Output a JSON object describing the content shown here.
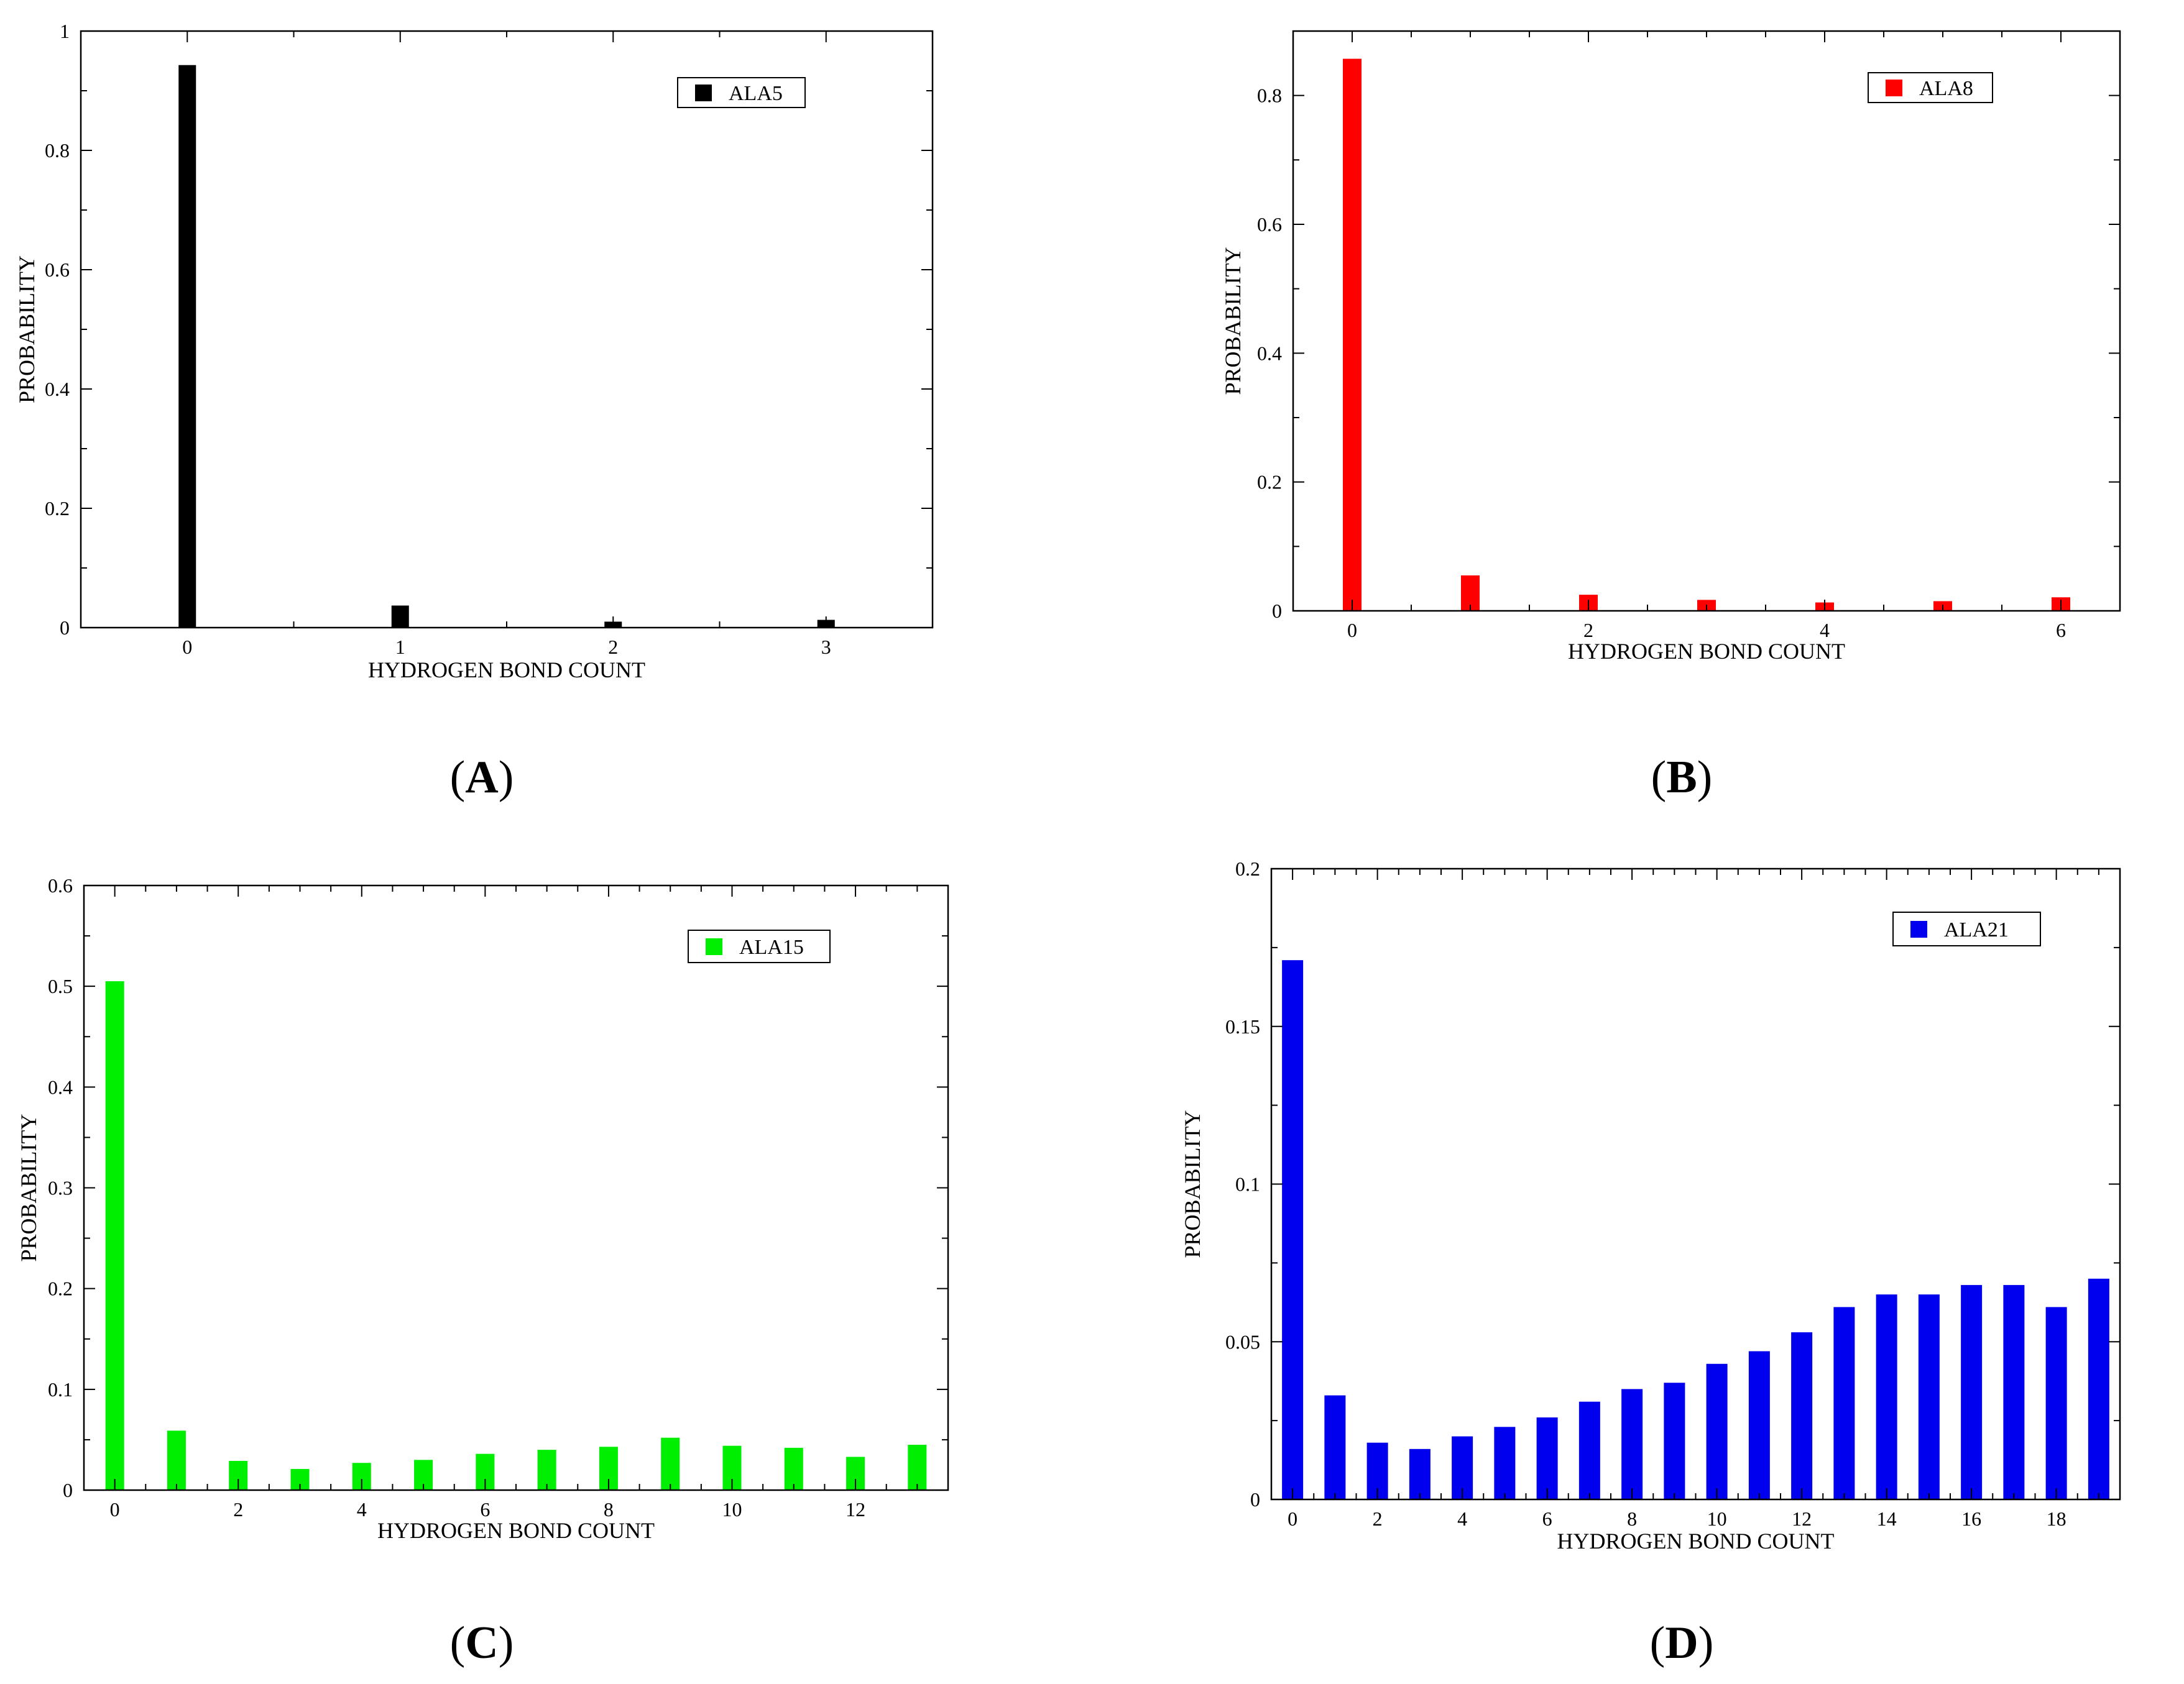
{
  "chart_data": [
    {
      "type": "bar",
      "panel": "A",
      "caption_letter": "A",
      "legend": "ALA5",
      "color": "#000000",
      "xlabel": "HYDROGEN BOND COUNT",
      "ylabel": "PROBABILITY",
      "xlim": [
        -0.5,
        3.5
      ],
      "ylim": [
        0,
        1
      ],
      "x_ticks": [
        "0",
        "1",
        "2",
        "3"
      ],
      "y_ticks": [
        "0",
        "0.2",
        "0.4",
        "0.6",
        "0.8",
        "1"
      ],
      "categories": [
        0,
        1,
        2,
        3
      ],
      "values": [
        0.943,
        0.037,
        0.01,
        0.013
      ]
    },
    {
      "type": "bar",
      "panel": "B",
      "caption_letter": "B",
      "legend": "ALA8",
      "color": "#ff0000",
      "xlabel": "HYDROGEN BOND COUNT",
      "ylabel": "PROBABILITY",
      "xlim": [
        -0.5,
        6.5
      ],
      "ylim": [
        0,
        0.9
      ],
      "x_ticks": [
        "0",
        "2",
        "4",
        "6"
      ],
      "y_ticks": [
        "0",
        "0.2",
        "0.4",
        "0.6",
        "0.8"
      ],
      "categories": [
        0,
        1,
        2,
        3,
        4,
        5,
        6
      ],
      "values": [
        0.857,
        0.055,
        0.025,
        0.017,
        0.013,
        0.015,
        0.021
      ]
    },
    {
      "type": "bar",
      "panel": "C",
      "caption_letter": "C",
      "legend": "ALA15",
      "color": "#00ee00",
      "xlabel": "HYDROGEN BOND COUNT",
      "ylabel": "PROBABILITY",
      "xlim": [
        -0.5,
        13.5
      ],
      "ylim": [
        0,
        0.6
      ],
      "x_ticks": [
        "0",
        "2",
        "4",
        "6",
        "8",
        "10",
        "12"
      ],
      "y_ticks": [
        "0",
        "0.1",
        "0.2",
        "0.3",
        "0.4",
        "0.5",
        "0.6"
      ],
      "categories": [
        0,
        1,
        2,
        3,
        4,
        5,
        6,
        7,
        8,
        9,
        10,
        11,
        12,
        13
      ],
      "values": [
        0.505,
        0.059,
        0.029,
        0.021,
        0.027,
        0.03,
        0.036,
        0.04,
        0.043,
        0.052,
        0.044,
        0.042,
        0.033,
        0.045
      ]
    },
    {
      "type": "bar",
      "panel": "D",
      "caption_letter": "D",
      "legend": "ALA21",
      "color": "#0000ee",
      "xlabel": "HYDROGEN BOND COUNT",
      "ylabel": "PROBABILITY",
      "xlim": [
        -0.5,
        19.5
      ],
      "ylim": [
        0,
        0.2
      ],
      "x_ticks": [
        "0",
        "2",
        "4",
        "6",
        "8",
        "10",
        "12",
        "14",
        "16",
        "18"
      ],
      "y_ticks": [
        "0",
        "0.05",
        "0.1",
        "0.15",
        "0.2"
      ],
      "categories": [
        0,
        1,
        2,
        3,
        4,
        5,
        6,
        7,
        8,
        9,
        10,
        11,
        12,
        13,
        14,
        15,
        16,
        17,
        18,
        19
      ],
      "values": [
        0.171,
        0.033,
        0.018,
        0.016,
        0.02,
        0.023,
        0.026,
        0.031,
        0.035,
        0.037,
        0.043,
        0.047,
        0.053,
        0.061,
        0.065,
        0.065,
        0.068,
        0.068,
        0.061,
        0.07
      ]
    }
  ]
}
